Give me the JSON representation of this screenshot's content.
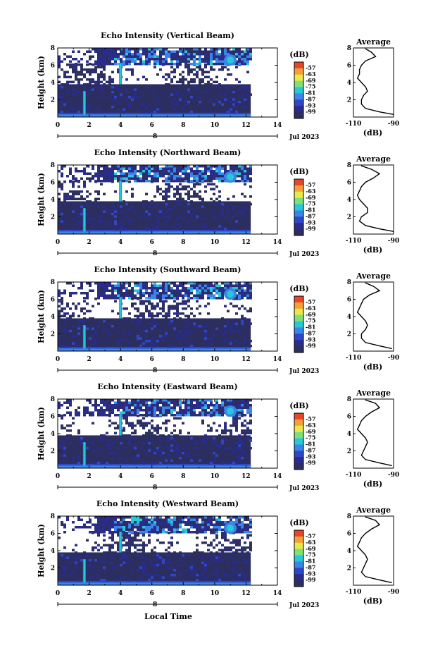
{
  "figure": {
    "xlabel": "Local Time",
    "date_label": "Jul 2023",
    "day_label": "8"
  },
  "chart_data": [
    {
      "type": "heatmap",
      "title": "Echo Intensity (Vertical Beam)",
      "ylabel": "Height (km)",
      "xlim": [
        0,
        14
      ],
      "ylim": [
        0,
        8
      ],
      "x_ticks": [
        "0",
        "2",
        "4",
        "6",
        "8",
        "10",
        "12",
        "14"
      ],
      "y_ticks": [
        "2",
        "4",
        "6",
        "8"
      ],
      "data_end_hour": 12.3,
      "colorbar": {
        "unit": "(dB)",
        "levels": [
          "-57",
          "-63",
          "-69",
          "-75",
          "-81",
          "-87",
          "-93",
          "-99"
        ]
      },
      "profile": {
        "title": "Average",
        "xlabel": "(dB)",
        "x_ticks": [
          "-110",
          "-90"
        ],
        "xlim": [
          -110,
          -90
        ],
        "ylim": [
          0,
          8
        ],
        "height_km": [
          0.3,
          0.6,
          1.0,
          1.5,
          2.0,
          2.5,
          3.0,
          3.5,
          4.0,
          4.5,
          5.0,
          5.5,
          6.0,
          6.5,
          7.0,
          7.5,
          7.9
        ],
        "avg_db": [
          -90,
          -97,
          -104,
          -106,
          -106,
          -105,
          -103,
          -104,
          -106,
          -108,
          -107,
          -107,
          -106,
          -104,
          -99,
          -101,
          -104
        ]
      }
    },
    {
      "type": "heatmap",
      "title": "Echo Intensity (Northward Beam)",
      "ylabel": "Height (km)",
      "xlim": [
        0,
        14
      ],
      "ylim": [
        0,
        8
      ],
      "x_ticks": [
        "0",
        "2",
        "4",
        "6",
        "8",
        "10",
        "12",
        "14"
      ],
      "y_ticks": [
        "2",
        "4",
        "6",
        "8"
      ],
      "data_end_hour": 12.3,
      "colorbar": {
        "unit": "(dB)",
        "levels": [
          "-57",
          "-63",
          "-69",
          "-75",
          "-81",
          "-87",
          "-93",
          "-99"
        ]
      },
      "profile": {
        "title": "Average",
        "xlabel": "(dB)",
        "x_ticks": [
          "-110",
          "-90"
        ],
        "xlim": [
          -110,
          -90
        ],
        "ylim": [
          0,
          8
        ],
        "height_km": [
          0.3,
          0.6,
          1.0,
          1.5,
          2.0,
          2.5,
          3.0,
          3.5,
          4.0,
          4.5,
          5.0,
          5.5,
          6.0,
          6.5,
          7.0,
          7.5,
          7.9
        ],
        "avg_db": [
          -90,
          -97,
          -104,
          -107,
          -106,
          -103,
          -103,
          -105,
          -107,
          -108,
          -107,
          -106,
          -104,
          -100,
          -97,
          -101,
          -106
        ]
      }
    },
    {
      "type": "heatmap",
      "title": "Echo Intensity (Southward Beam)",
      "ylabel": "Height (km)",
      "xlim": [
        0,
        14
      ],
      "ylim": [
        0,
        8
      ],
      "x_ticks": [
        "0",
        "2",
        "4",
        "6",
        "8",
        "10",
        "12",
        "14"
      ],
      "y_ticks": [
        "2",
        "4",
        "6",
        "8"
      ],
      "data_end_hour": 12.3,
      "colorbar": {
        "unit": "(dB)",
        "levels": [
          "-57",
          "-63",
          "-69",
          "-75",
          "-81",
          "-87",
          "-93",
          "-99"
        ]
      },
      "profile": {
        "title": "Average",
        "xlabel": "(dB)",
        "x_ticks": [
          "-110",
          "-90"
        ],
        "xlim": [
          -110,
          -90
        ],
        "ylim": [
          0,
          8
        ],
        "height_km": [
          0.3,
          0.6,
          1.0,
          1.5,
          2.0,
          2.5,
          3.0,
          3.5,
          4.0,
          4.5,
          5.0,
          5.5,
          6.0,
          6.5,
          7.0,
          7.5,
          7.9
        ],
        "avg_db": [
          -91,
          -97,
          -104,
          -106,
          -106,
          -104,
          -103,
          -104,
          -106,
          -108,
          -107,
          -106,
          -105,
          -102,
          -97,
          -100,
          -104
        ]
      }
    },
    {
      "type": "heatmap",
      "title": "Echo Intensity (Eastward Beam)",
      "ylabel": "Height (km)",
      "xlim": [
        0,
        14
      ],
      "ylim": [
        0,
        8
      ],
      "x_ticks": [
        "0",
        "2",
        "4",
        "6",
        "8",
        "10",
        "12",
        "14"
      ],
      "y_ticks": [
        "2",
        "4",
        "6",
        "8"
      ],
      "data_end_hour": 12.3,
      "colorbar": {
        "unit": "(dB)",
        "levels": [
          "-57",
          "-63",
          "-69",
          "-75",
          "-81",
          "-87",
          "-93",
          "-99"
        ]
      },
      "profile": {
        "title": "Average",
        "xlabel": "(dB)",
        "x_ticks": [
          "-110",
          "-90"
        ],
        "xlim": [
          -110,
          -90
        ],
        "ylim": [
          0,
          8
        ],
        "height_km": [
          0.3,
          0.6,
          1.0,
          1.5,
          2.0,
          2.5,
          3.0,
          3.5,
          4.0,
          4.5,
          5.0,
          5.5,
          6.0,
          6.5,
          7.0,
          7.5,
          7.9
        ],
        "avg_db": [
          -91,
          -97,
          -104,
          -106,
          -105,
          -104,
          -103,
          -104,
          -106,
          -108,
          -107,
          -106,
          -104,
          -101,
          -97,
          -99,
          -104
        ]
      }
    },
    {
      "type": "heatmap",
      "title": "Echo Intensity (Westward Beam)",
      "ylabel": "Height (km)",
      "xlim": [
        0,
        14
      ],
      "ylim": [
        0,
        8
      ],
      "x_ticks": [
        "0",
        "2",
        "4",
        "6",
        "8",
        "10",
        "12",
        "14"
      ],
      "y_ticks": [
        "2",
        "4",
        "6",
        "8"
      ],
      "data_end_hour": 12.3,
      "colorbar": {
        "unit": "(dB)",
        "levels": [
          "-57",
          "-63",
          "-69",
          "-75",
          "-81",
          "-87",
          "-93",
          "-99"
        ]
      },
      "profile": {
        "title": "Average",
        "xlabel": "(dB)",
        "x_ticks": [
          "-110",
          "-90"
        ],
        "xlim": [
          -110,
          -90
        ],
        "ylim": [
          0,
          8
        ],
        "height_km": [
          0.3,
          0.6,
          1.0,
          1.5,
          2.0,
          2.5,
          3.0,
          3.5,
          4.0,
          4.5,
          5.0,
          5.5,
          6.0,
          6.5,
          7.0,
          7.5,
          7.9
        ],
        "avg_db": [
          -91,
          -97,
          -104,
          -106,
          -105,
          -104,
          -103,
          -104,
          -106,
          -108,
          -107,
          -106,
          -104,
          -101,
          -97,
          -99,
          -104
        ]
      }
    }
  ],
  "colors": {
    "colorbar": [
      "#e8462a",
      "#f6a137",
      "#e8e84a",
      "#7fe07a",
      "#27c8d8",
      "#3a86e8",
      "#2f46c8",
      "#2a2c8a",
      "#2b2e5e"
    ]
  }
}
